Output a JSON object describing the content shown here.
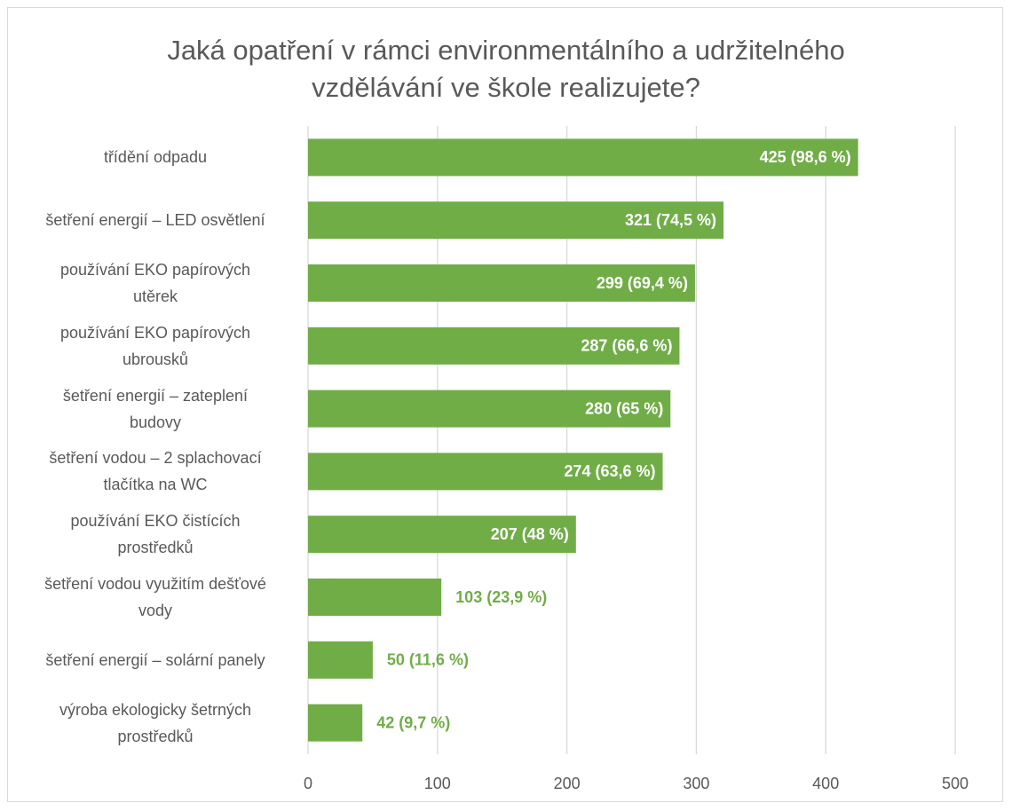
{
  "chart_data": {
    "type": "bar",
    "orientation": "horizontal",
    "title": "Jaká opatření v rámci environmentálního a udržitelného\nvzdělávání ve škole realizujete?",
    "categories": [
      "třídění odpadu",
      "šetření energií – LED osvětlení",
      "používání EKO papírových\nutěrek",
      "používání EKO papírových\nubrousků",
      "šetření energií – zateplení\nbudovy",
      "šetření vodou – 2 splachovací\ntlačítka na WC",
      "používání EKO čistících\nprostředků",
      "šetření vodou využitím dešťové\nvody",
      "šetření energií – solární panely",
      "výroba ekologicky šetrných\nprostředků"
    ],
    "values": [
      425,
      321,
      299,
      287,
      280,
      274,
      207,
      103,
      50,
      42
    ],
    "value_labels": [
      "425 (98,6 %)",
      "321 (74,5 %)",
      "299 (69,4 %)",
      "287 (66,6 %)",
      "280 (65 %)",
      "274 (63,6 %)",
      "207 (48 %)",
      "103 (23,9 %)",
      "50 (11,6 %)",
      "42 (9,7 %)"
    ],
    "color": "#70ad47",
    "xlim": [
      0,
      500
    ],
    "xticks": [
      0,
      100,
      200,
      300,
      400,
      500
    ],
    "grid": true
  }
}
